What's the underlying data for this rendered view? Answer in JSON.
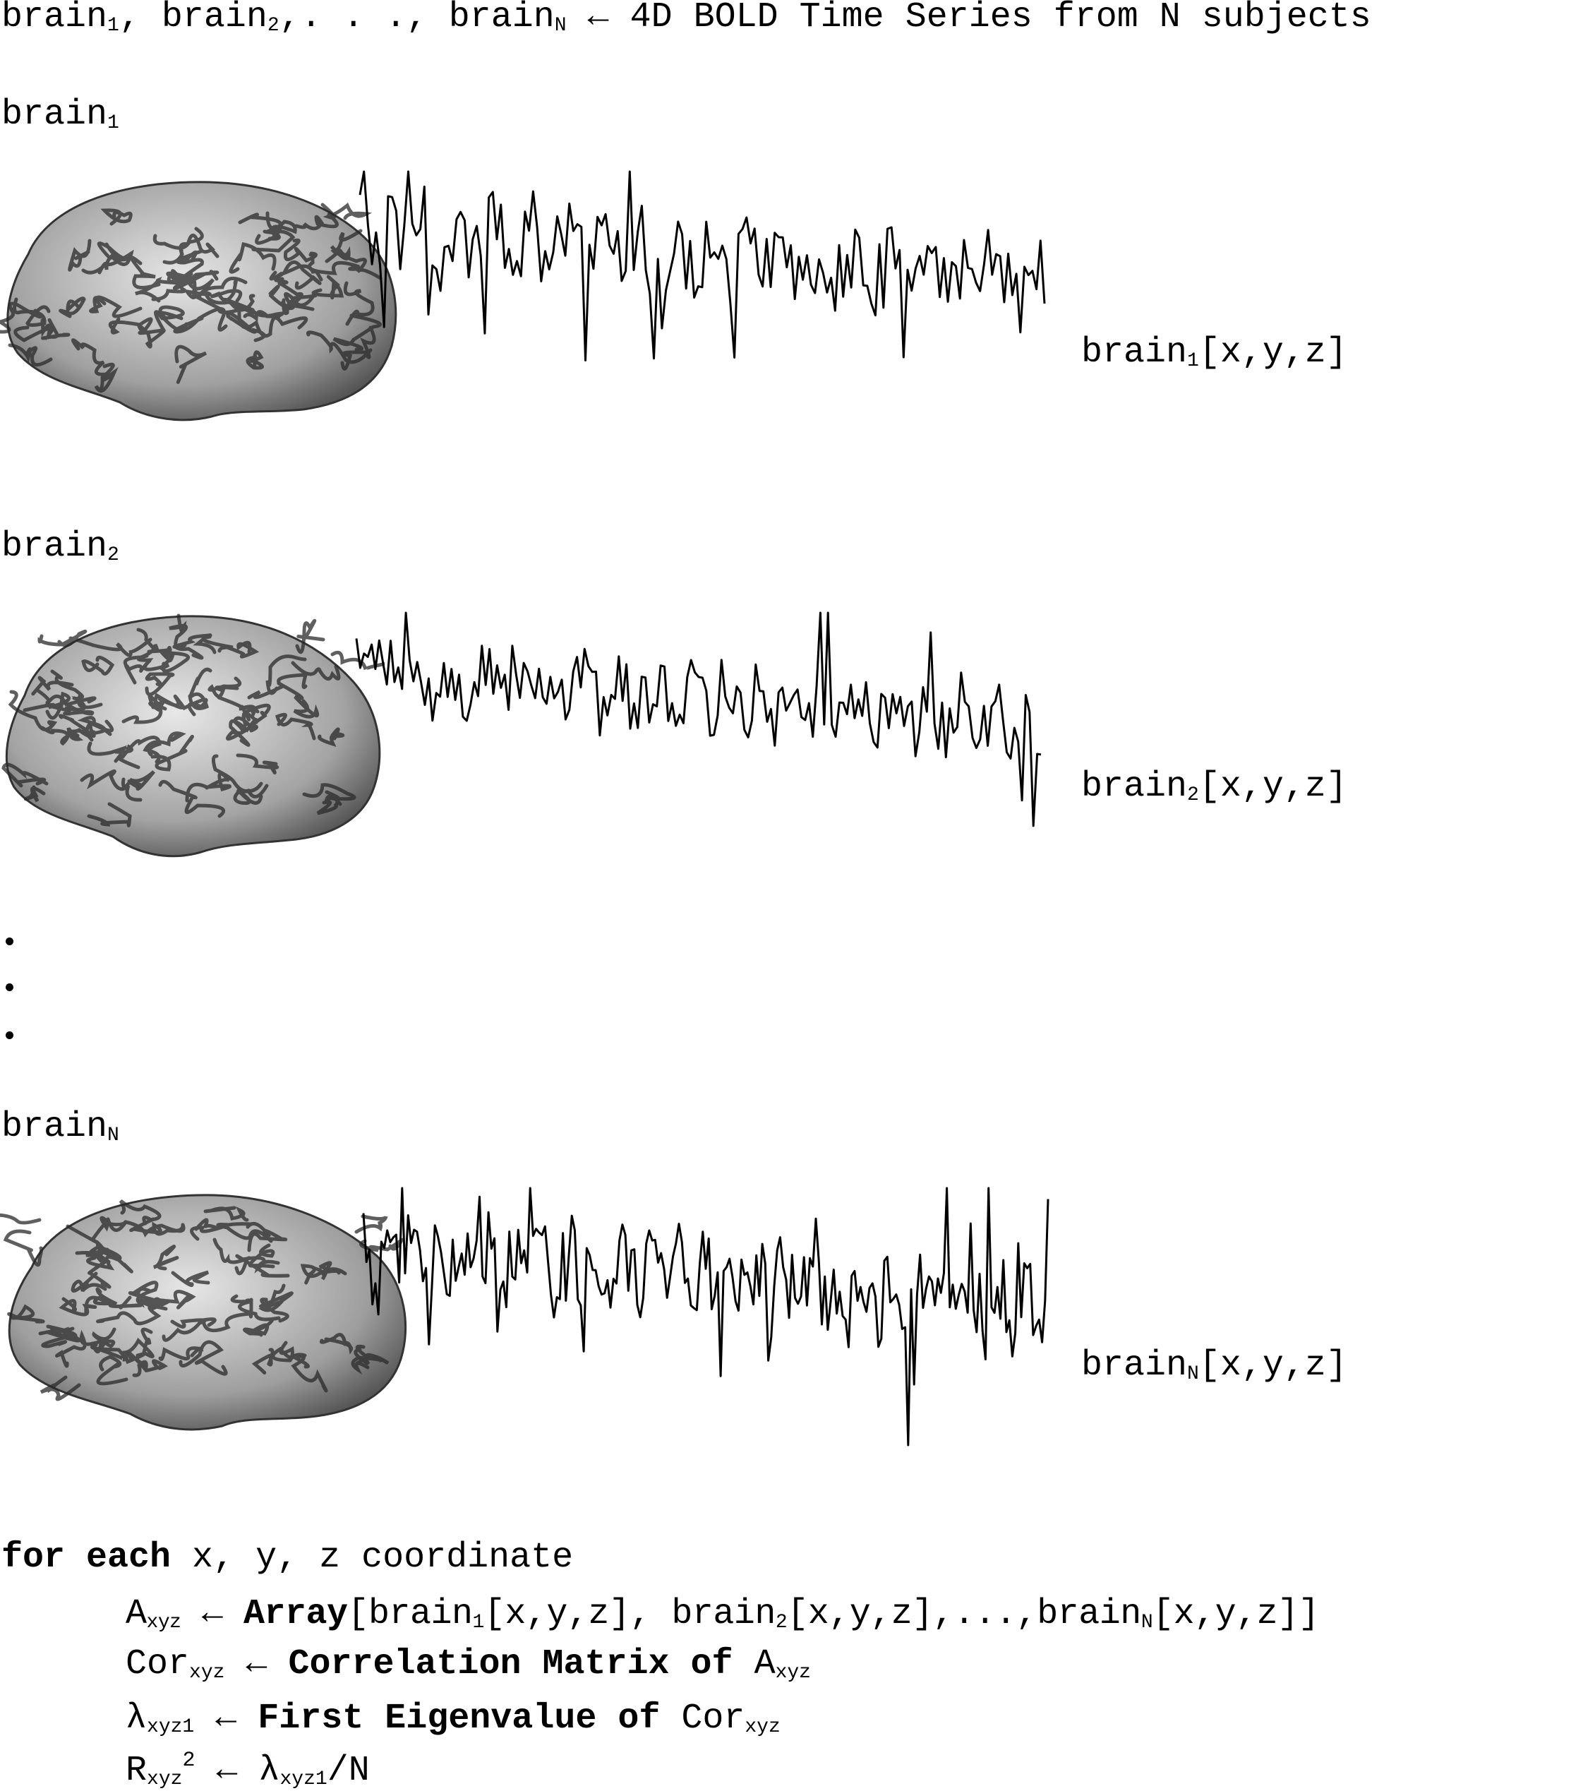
{
  "header": {
    "t1": "brain",
    "s1": "1",
    "t2": ", brain",
    "s2": "2",
    "t3": ",. . ., brain",
    "s3": "N",
    "arrow": "←",
    "rest": " 4D BOLD Time Series from N subjects"
  },
  "rows": [
    {
      "title": "brain",
      "sub": "1",
      "label_a": "brain",
      "label_sub": "1",
      "label_b": "[x,y,z]"
    },
    {
      "title": "brain",
      "sub": "2",
      "label_a": "brain",
      "label_sub": "2",
      "label_b": "[x,y,z]"
    },
    {
      "title": "brain",
      "sub": "N",
      "label_a": "brain",
      "label_sub": "N",
      "label_b": "[x,y,z]"
    }
  ],
  "algorithm": {
    "for_kw": "for each",
    "for_rest": " x, y, z coordinate",
    "l1": {
      "v": "A",
      "vs": "xyz",
      "arrow": " ← ",
      "kw": "Array",
      "p1": "[brain",
      "s1": "1",
      "p2": "[x,y,z], brain",
      "s2": "2",
      "p3": "[x,y,z],...,brain",
      "s3": "N",
      "p4": "[x,y,z]]"
    },
    "l2": {
      "v": "Cor",
      "vs": "xyz",
      "arrow": " ← ",
      "kw": "Correlation Matrix of",
      "t": " A",
      "ts": "xyz"
    },
    "l3": {
      "v": "λ",
      "vs": "xyz1",
      "arrow": " ← ",
      "kw": "First Eigenvalue of",
      "t": " Cor",
      "ts": "xyz"
    },
    "l4": {
      "v": "R",
      "vs": "xyz",
      "sup": "2",
      "arrow": " ← ",
      "t": "λ",
      "ts": "xyz1",
      "t2": "/N"
    }
  }
}
